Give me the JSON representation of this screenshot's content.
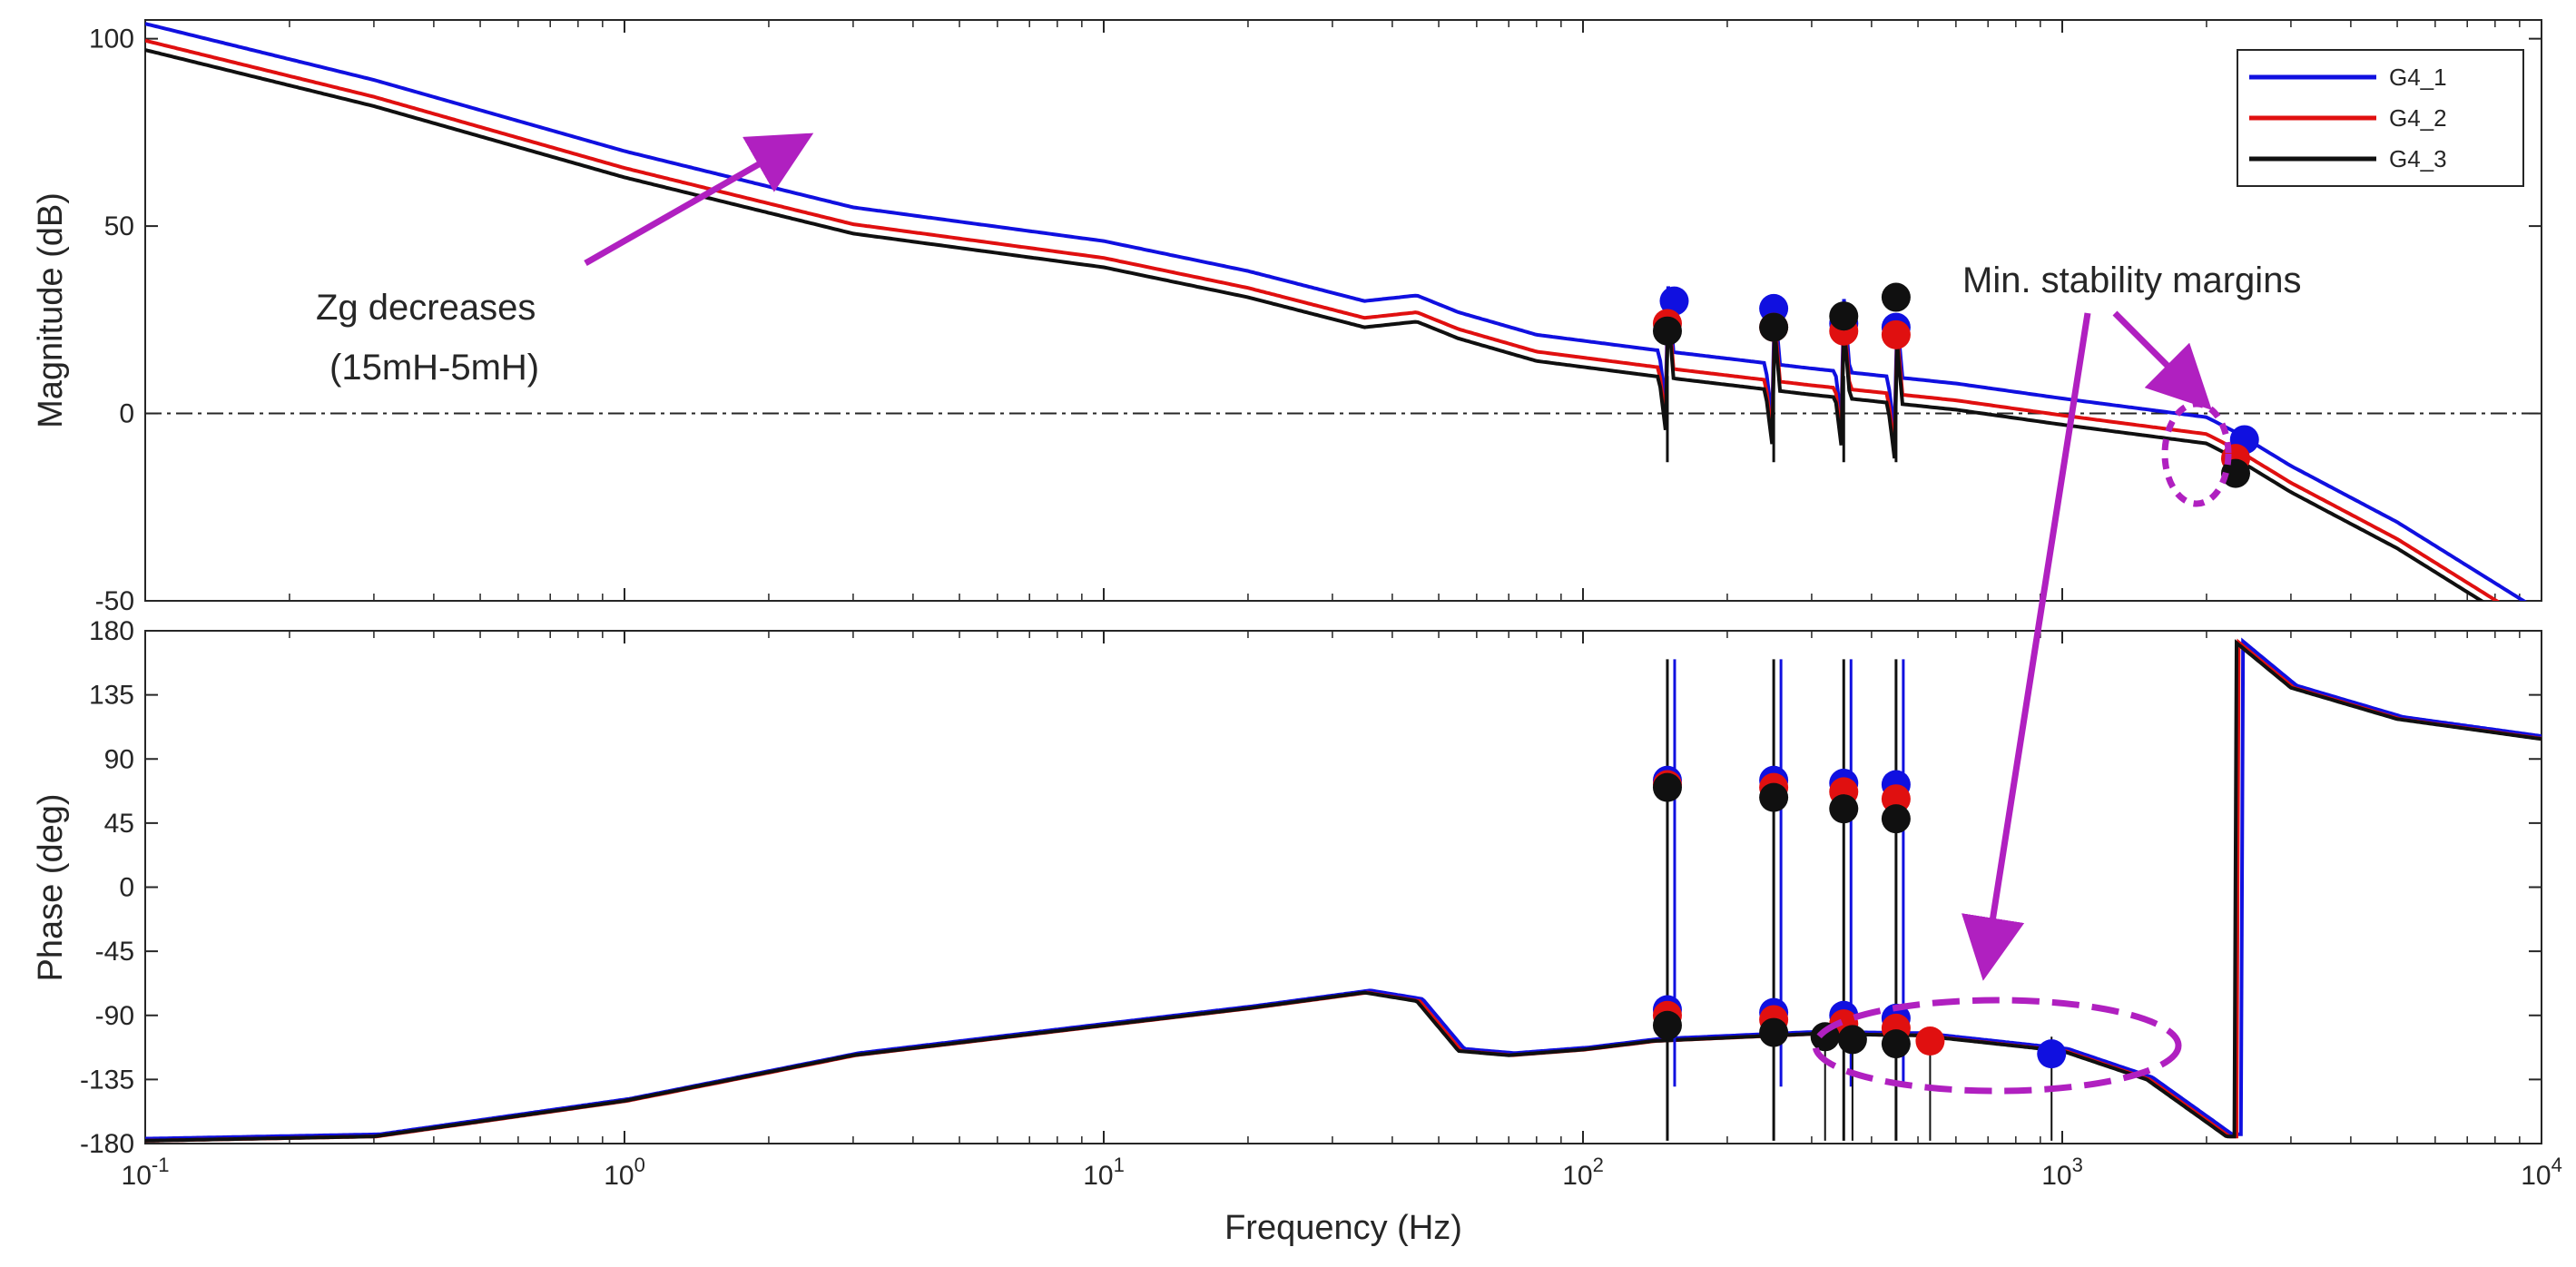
{
  "chart_data": {
    "type": "line",
    "title": "",
    "xlabel": "Frequency  (Hz)",
    "xscale": "log",
    "xlim": [
      0.1,
      10000
    ],
    "x_tick_labels": [
      {
        "base": "10",
        "exp": "-1"
      },
      {
        "base": "10",
        "exp": "0"
      },
      {
        "base": "10",
        "exp": "1"
      },
      {
        "base": "10",
        "exp": "2"
      },
      {
        "base": "10",
        "exp": "3"
      },
      {
        "base": "10",
        "exp": "4"
      }
    ],
    "legend": {
      "position": "top-right",
      "entries": [
        "G4_1",
        "G4_2",
        "G4_3"
      ]
    },
    "series_colors": [
      "#1010e0",
      "#e01010",
      "#101010"
    ],
    "annotation_color": "#b020c0",
    "magnitude": {
      "ylabel": "Magnitude (dB)",
      "ylim": [
        -50,
        105
      ],
      "yticks": [
        100,
        50,
        0,
        -50
      ],
      "ytick_labels": [
        "100",
        "50",
        "0",
        "-50"
      ],
      "reference_line": 0,
      "series": [
        {
          "name": "G4_1",
          "offset": 7
        },
        {
          "name": "G4_2",
          "offset": 2.5
        },
        {
          "name": "G4_3",
          "offset": 0
        }
      ],
      "base_curve": [
        [
          0.1,
          97
        ],
        [
          0.3,
          82
        ],
        [
          1,
          63
        ],
        [
          3,
          48
        ],
        [
          10,
          39
        ],
        [
          20,
          31
        ],
        [
          35,
          23
        ],
        [
          45,
          24.5
        ],
        [
          55,
          20
        ],
        [
          80,
          14
        ],
        [
          140,
          10
        ],
        [
          300,
          5
        ],
        [
          600,
          1
        ],
        [
          1000,
          -3
        ],
        [
          2000,
          -8
        ],
        [
          2300,
          -12
        ],
        [
          3000,
          -21
        ],
        [
          5000,
          -36
        ],
        [
          10000,
          -60
        ]
      ],
      "markers": [
        {
          "series": "G4_1",
          "points": [
            [
              155,
              30
            ],
            [
              250,
              28
            ],
            [
              350,
              24
            ],
            [
              450,
              23
            ],
            [
              2400,
              -7
            ]
          ]
        },
        {
          "series": "G4_2",
          "points": [
            [
              150,
              24
            ],
            [
              250,
              23
            ],
            [
              350,
              22
            ],
            [
              450,
              21
            ],
            [
              2300,
              -12
            ]
          ]
        },
        {
          "series": "G4_3",
          "points": [
            [
              150,
              22
            ],
            [
              250,
              23
            ],
            [
              350,
              26
            ],
            [
              450,
              31
            ],
            [
              2300,
              -16
            ]
          ]
        }
      ]
    },
    "phase": {
      "ylabel": "Phase (deg)",
      "ylim": [
        -180,
        180
      ],
      "yticks": [
        180,
        135,
        90,
        45,
        0,
        -45,
        -90,
        -135,
        -180
      ],
      "ytick_labels": [
        "180",
        "135",
        "90",
        "45",
        "0",
        "-45",
        "-90",
        "-135",
        "-180"
      ],
      "reference_lines": [
        180,
        -180
      ],
      "base_curve": [
        [
          0.1,
          -178
        ],
        [
          0.3,
          -175
        ],
        [
          1,
          -150
        ],
        [
          3,
          -118
        ],
        [
          10,
          -97
        ],
        [
          20,
          -85
        ],
        [
          35,
          -74
        ],
        [
          45,
          -80
        ],
        [
          55,
          -115
        ],
        [
          70,
          -118
        ],
        [
          100,
          -114
        ],
        [
          140,
          -108
        ],
        [
          300,
          -103
        ],
        [
          500,
          -104
        ],
        [
          1000,
          -115
        ],
        [
          1500,
          -135
        ],
        [
          2000,
          -165
        ],
        [
          2200,
          -175
        ],
        [
          2300,
          172
        ],
        [
          3000,
          140
        ],
        [
          5000,
          118
        ],
        [
          10000,
          104
        ]
      ],
      "markers": [
        {
          "series": "G4_1",
          "points": [
            [
              150,
              75
            ],
            [
              250,
              75
            ],
            [
              350,
              73
            ],
            [
              450,
              72
            ],
            [
              150,
              -86
            ],
            [
              250,
              -88
            ],
            [
              350,
              -90
            ],
            [
              450,
              -92
            ],
            [
              950,
              -117
            ]
          ]
        },
        {
          "series": "G4_2",
          "points": [
            [
              150,
              72
            ],
            [
              250,
              70
            ],
            [
              350,
              67
            ],
            [
              450,
              62
            ],
            [
              150,
              -90
            ],
            [
              250,
              -93
            ],
            [
              350,
              -96
            ],
            [
              450,
              -99
            ],
            [
              530,
              -108
            ]
          ]
        },
        {
          "series": "G4_3",
          "points": [
            [
              150,
              70
            ],
            [
              250,
              63
            ],
            [
              350,
              55
            ],
            [
              450,
              48
            ],
            [
              150,
              -97
            ],
            [
              250,
              -102
            ],
            [
              320,
              -105
            ],
            [
              365,
              -107
            ],
            [
              450,
              -110
            ]
          ]
        }
      ]
    },
    "annotations": {
      "zg_line1": "Zg decreases",
      "zg_line2": "(15mH-5mH)",
      "margin_label": "Min. stability margins"
    }
  }
}
